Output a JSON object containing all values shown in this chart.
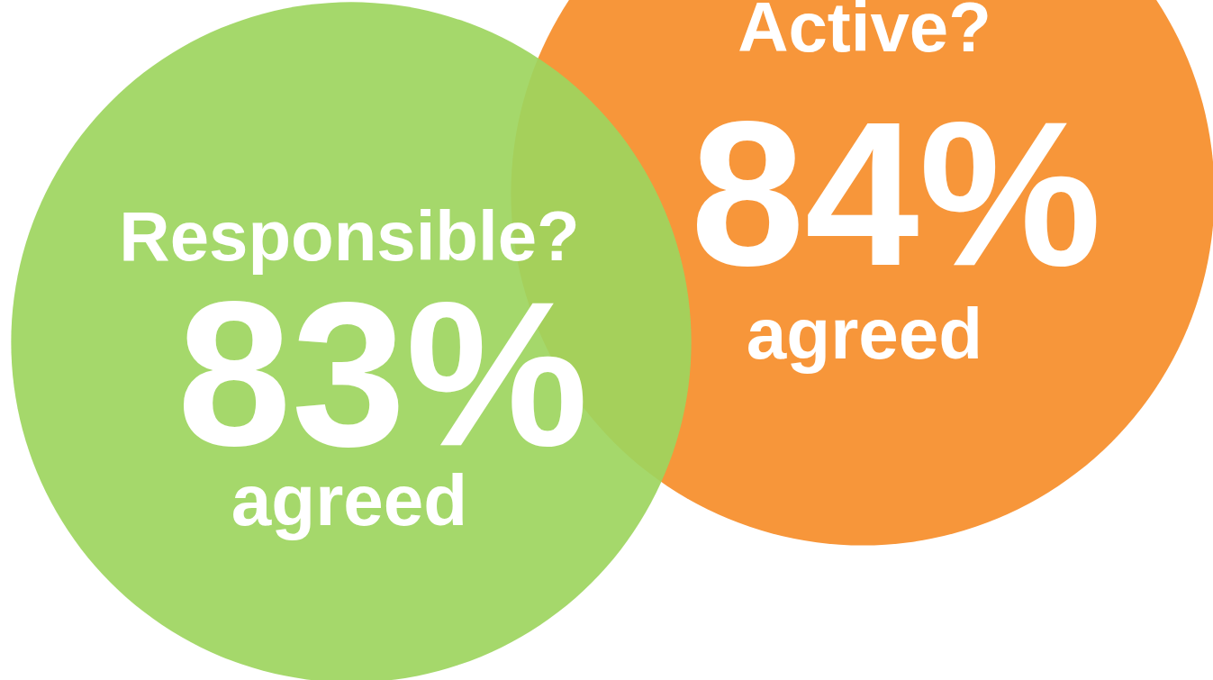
{
  "chart_data": {
    "type": "other",
    "categories": [
      "Responsible?",
      "Active?"
    ],
    "values": [
      83,
      84
    ],
    "value_labels": [
      "83%",
      "84%"
    ],
    "colors": [
      "#9dd55e",
      "#f7963a"
    ],
    "annotations": [
      "agreed",
      "agreed"
    ]
  }
}
